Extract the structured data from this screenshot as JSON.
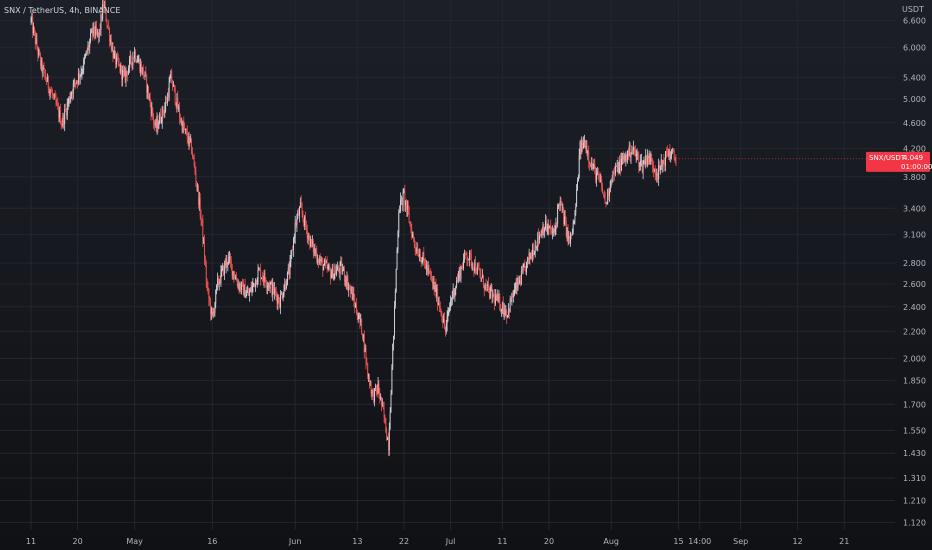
{
  "chart_data": {
    "type": "candlestick",
    "legend": "SNX / TetherUS, 4h, BINANCE",
    "y_unit": "USDT",
    "y_scale": "log",
    "y_range": [
      1.09,
      7.1
    ],
    "y_ticks": [
      {
        "value": 6.6,
        "label": "6.600"
      },
      {
        "value": 6.0,
        "label": "6.000"
      },
      {
        "value": 5.4,
        "label": "5.400"
      },
      {
        "value": 5.0,
        "label": "5.000"
      },
      {
        "value": 4.6,
        "label": "4.600"
      },
      {
        "value": 4.2,
        "label": "4.200"
      },
      {
        "value": 3.8,
        "label": "3.800"
      },
      {
        "value": 3.4,
        "label": "3.400"
      },
      {
        "value": 3.1,
        "label": "3.100"
      },
      {
        "value": 2.8,
        "label": "2.800"
      },
      {
        "value": 2.6,
        "label": "2.600"
      },
      {
        "value": 2.4,
        "label": "2.400"
      },
      {
        "value": 2.2,
        "label": "2.200"
      },
      {
        "value": 2.0,
        "label": "2.000"
      },
      {
        "value": 1.85,
        "label": "1.850"
      },
      {
        "value": 1.7,
        "label": "1.700"
      },
      {
        "value": 1.55,
        "label": "1.550"
      },
      {
        "value": 1.43,
        "label": "1.430"
      },
      {
        "value": 1.31,
        "label": "1.310"
      },
      {
        "value": 1.21,
        "label": "1.210"
      },
      {
        "value": 1.12,
        "label": "1.120"
      }
    ],
    "x_range_days": [
      0,
      146
    ],
    "x_ticks": [
      {
        "day": 0,
        "label": "11"
      },
      {
        "day": 9,
        "label": "20"
      },
      {
        "day": 20,
        "label": "May"
      },
      {
        "day": 35,
        "label": "16"
      },
      {
        "day": 51,
        "label": "Jun"
      },
      {
        "day": 63,
        "label": "13"
      },
      {
        "day": 72,
        "label": "22"
      },
      {
        "day": 81,
        "label": "Jul"
      },
      {
        "day": 91,
        "label": "11"
      },
      {
        "day": 100,
        "label": "20"
      },
      {
        "day": 112,
        "label": "Aug"
      },
      {
        "day": 125,
        "label": "15"
      },
      {
        "day": 129.1,
        "label": "14:00"
      },
      {
        "day": 137,
        "label": "Sep"
      },
      {
        "day": 148,
        "label": "12"
      },
      {
        "day": 157,
        "label": "21"
      }
    ],
    "waypoints": [
      [
        0,
        6.6
      ],
      [
        2,
        5.6
      ],
      [
        4,
        5.1
      ],
      [
        6,
        4.6
      ],
      [
        8,
        5.2
      ],
      [
        10,
        5.6
      ],
      [
        12,
        6.4
      ],
      [
        13,
        6.2
      ],
      [
        14,
        7.0
      ],
      [
        16,
        5.8
      ],
      [
        18,
        5.4
      ],
      [
        20,
        5.9
      ],
      [
        22,
        5.4
      ],
      [
        24,
        4.5
      ],
      [
        26,
        4.9
      ],
      [
        27,
        5.4
      ],
      [
        29,
        4.6
      ],
      [
        31,
        4.2
      ],
      [
        32,
        3.7
      ],
      [
        33,
        3.2
      ],
      [
        34,
        2.55
      ],
      [
        35,
        2.3
      ],
      [
        36,
        2.6
      ],
      [
        38,
        2.85
      ],
      [
        40,
        2.6
      ],
      [
        42,
        2.5
      ],
      [
        44,
        2.72
      ],
      [
        46,
        2.6
      ],
      [
        48,
        2.45
      ],
      [
        50,
        2.75
      ],
      [
        51,
        3.2
      ],
      [
        52,
        3.4
      ],
      [
        54,
        3.0
      ],
      [
        56,
        2.8
      ],
      [
        58,
        2.7
      ],
      [
        60,
        2.75
      ],
      [
        62,
        2.5
      ],
      [
        64,
        2.2
      ],
      [
        65,
        1.9
      ],
      [
        66,
        1.75
      ],
      [
        67,
        1.8
      ],
      [
        68,
        1.65
      ],
      [
        69,
        1.48
      ],
      [
        70,
        2.2
      ],
      [
        71,
        3.4
      ],
      [
        72,
        3.55
      ],
      [
        74,
        3.0
      ],
      [
        76,
        2.8
      ],
      [
        78,
        2.55
      ],
      [
        79,
        2.4
      ],
      [
        80,
        2.2
      ],
      [
        81,
        2.45
      ],
      [
        82,
        2.6
      ],
      [
        84,
        2.9
      ],
      [
        86,
        2.75
      ],
      [
        88,
        2.55
      ],
      [
        90,
        2.45
      ],
      [
        92,
        2.35
      ],
      [
        93,
        2.5
      ],
      [
        95,
        2.7
      ],
      [
        97,
        2.95
      ],
      [
        99,
        3.2
      ],
      [
        101,
        3.1
      ],
      [
        102,
        3.5
      ],
      [
        104,
        3.0
      ],
      [
        105,
        3.3
      ],
      [
        106,
        4.2
      ],
      [
        107,
        4.3
      ],
      [
        108,
        4.0
      ],
      [
        110,
        3.7
      ],
      [
        111,
        3.45
      ],
      [
        112,
        3.8
      ],
      [
        114,
        4.0
      ],
      [
        116,
        4.2
      ],
      [
        118,
        3.95
      ],
      [
        119,
        4.1
      ],
      [
        121,
        3.85
      ],
      [
        123,
        4.15
      ],
      [
        124.5,
        4.05
      ]
    ],
    "last_price": {
      "symbol": "SNX/USDT",
      "price": "4.049",
      "countdown": "01:00:00"
    },
    "colors": {
      "up": "#d1d4dc",
      "down": "#ef5350",
      "background": "#131722",
      "grid": "#23262f",
      "price_tag": "#f23645"
    }
  }
}
